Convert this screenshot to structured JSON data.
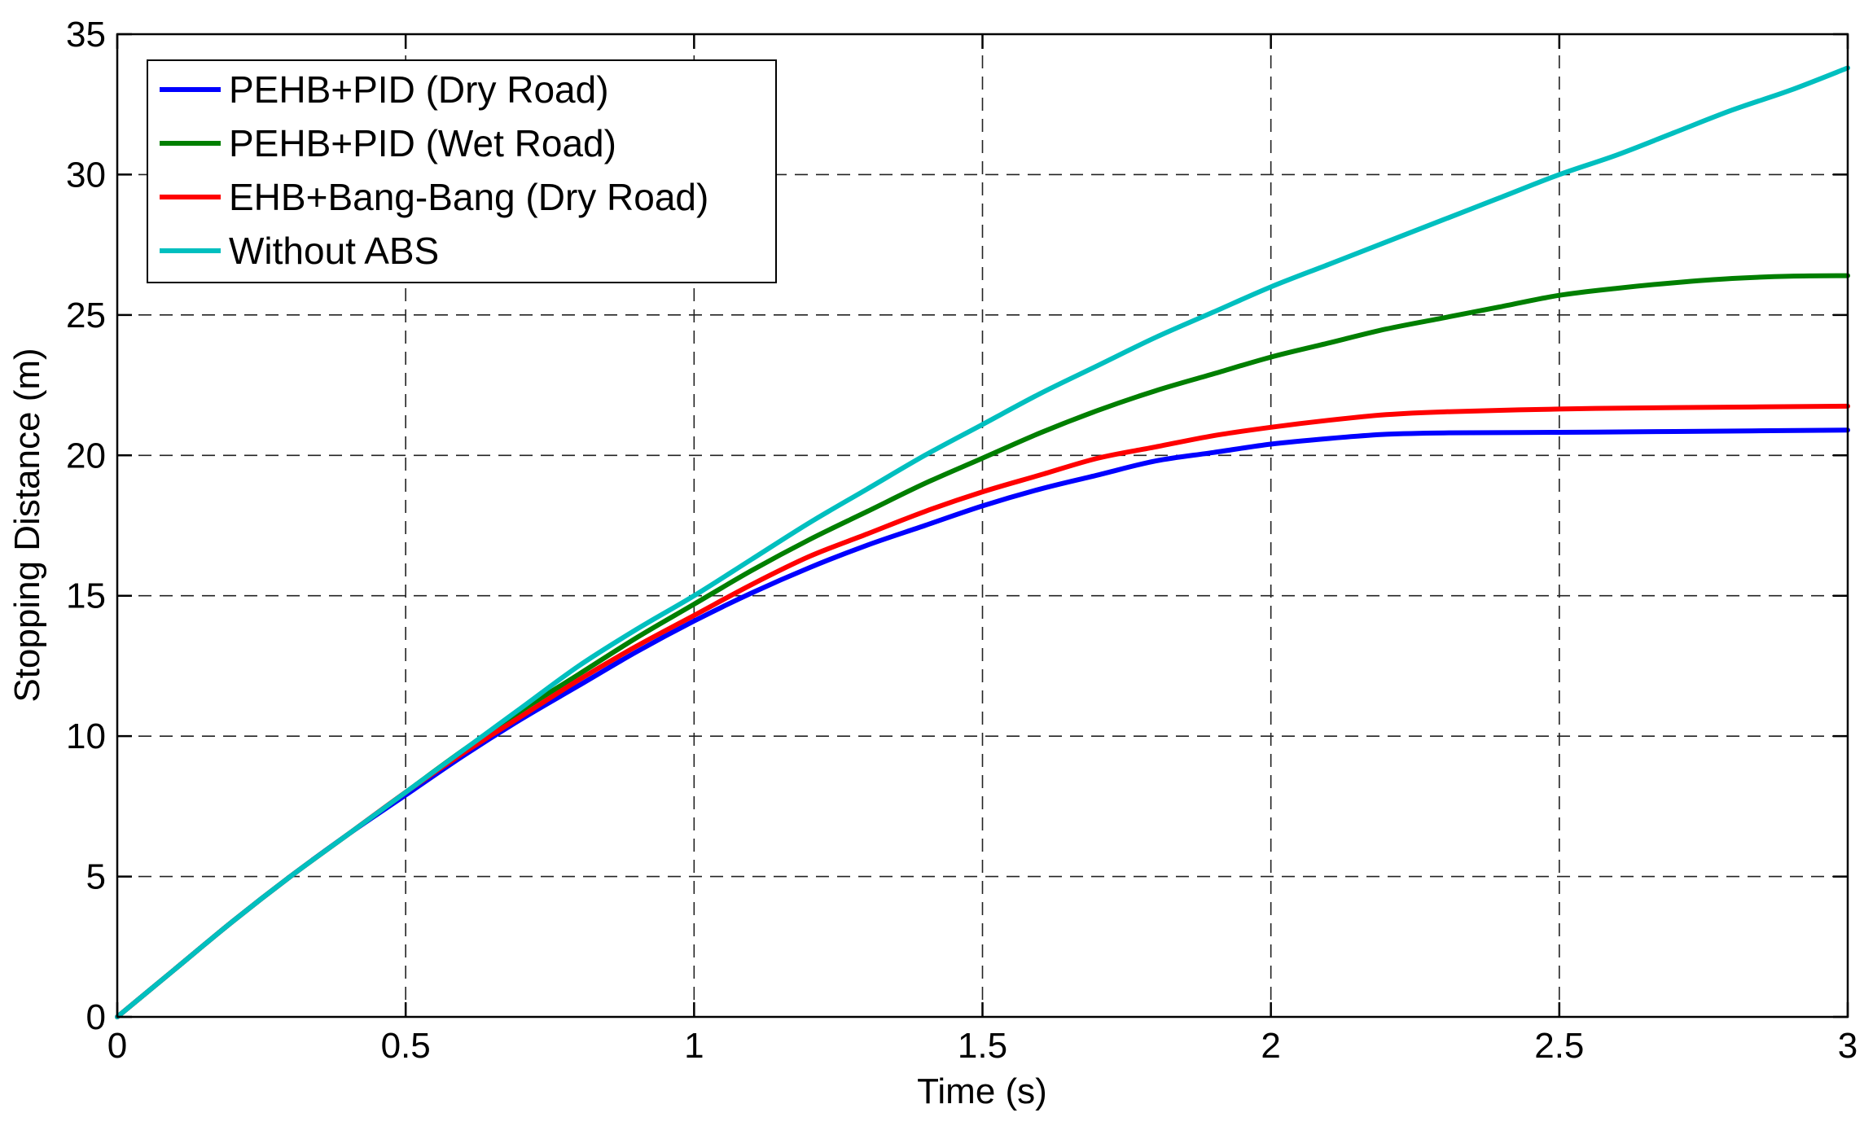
{
  "chart_data": {
    "type": "line",
    "title": "",
    "xlabel": "Time (s)",
    "ylabel": "Stopping Distance (m)",
    "xlim": [
      0,
      3
    ],
    "ylim": [
      0,
      35
    ],
    "xticks": [
      0,
      0.5,
      1,
      1.5,
      2,
      2.5,
      3
    ],
    "xtick_labels": [
      "0",
      "0.5",
      "1",
      "1.5",
      "2",
      "2.5",
      "3"
    ],
    "yticks": [
      0,
      5,
      10,
      15,
      20,
      25,
      30,
      35
    ],
    "ytick_labels": [
      "0",
      "5",
      "10",
      "15",
      "20",
      "25",
      "30",
      "35"
    ],
    "grid": true,
    "legend_position": "top-left",
    "series": [
      {
        "name": "PEHB+PID (Dry Road)",
        "color": "#0000ff",
        "x": [
          0,
          0.1,
          0.2,
          0.3,
          0.4,
          0.5,
          0.6,
          0.7,
          0.8,
          0.9,
          1.0,
          1.1,
          1.2,
          1.3,
          1.4,
          1.5,
          1.6,
          1.7,
          1.8,
          1.9,
          2.0,
          2.1,
          2.2,
          2.3,
          2.5,
          2.7,
          3.0
        ],
        "y": [
          0,
          1.7,
          3.4,
          5.0,
          6.5,
          7.9,
          9.3,
          10.6,
          11.8,
          13.0,
          14.1,
          15.1,
          16.0,
          16.8,
          17.5,
          18.2,
          18.8,
          19.3,
          19.8,
          20.1,
          20.4,
          20.6,
          20.75,
          20.8,
          20.82,
          20.85,
          20.9
        ]
      },
      {
        "name": "PEHB+PID (Wet Road)",
        "color": "#007f00",
        "x": [
          0,
          0.1,
          0.2,
          0.3,
          0.4,
          0.5,
          0.6,
          0.7,
          0.8,
          0.9,
          1.0,
          1.1,
          1.2,
          1.3,
          1.4,
          1.5,
          1.6,
          1.7,
          1.8,
          1.9,
          2.0,
          2.1,
          2.2,
          2.3,
          2.4,
          2.5,
          2.6,
          2.7,
          2.8,
          2.9,
          3.0
        ],
        "y": [
          0,
          1.7,
          3.4,
          5.0,
          6.5,
          8.0,
          9.5,
          10.9,
          12.2,
          13.5,
          14.7,
          15.9,
          17.0,
          18.0,
          19.0,
          19.9,
          20.8,
          21.6,
          22.3,
          22.9,
          23.5,
          24.0,
          24.5,
          24.9,
          25.3,
          25.7,
          25.95,
          26.15,
          26.3,
          26.38,
          26.4
        ]
      },
      {
        "name": "EHB+Bang-Bang (Dry Road)",
        "color": "#ff0000",
        "x": [
          0,
          0.1,
          0.2,
          0.3,
          0.4,
          0.5,
          0.6,
          0.7,
          0.8,
          0.9,
          1.0,
          1.1,
          1.2,
          1.3,
          1.4,
          1.5,
          1.6,
          1.7,
          1.8,
          1.9,
          2.0,
          2.1,
          2.2,
          2.3,
          2.5,
          2.7,
          3.0
        ],
        "y": [
          0,
          1.7,
          3.4,
          5.0,
          6.5,
          8.0,
          9.4,
          10.7,
          12.0,
          13.2,
          14.3,
          15.4,
          16.4,
          17.2,
          18.0,
          18.7,
          19.3,
          19.9,
          20.3,
          20.7,
          21.0,
          21.25,
          21.45,
          21.55,
          21.65,
          21.7,
          21.75
        ]
      },
      {
        "name": "Without ABS",
        "color": "#00bfbf",
        "x": [
          0,
          0.1,
          0.2,
          0.3,
          0.4,
          0.5,
          0.6,
          0.7,
          0.8,
          0.9,
          1.0,
          1.1,
          1.2,
          1.3,
          1.4,
          1.5,
          1.6,
          1.7,
          1.8,
          1.9,
          2.0,
          2.1,
          2.2,
          2.3,
          2.4,
          2.5,
          2.6,
          2.7,
          2.8,
          2.9,
          3.0
        ],
        "y": [
          0,
          1.7,
          3.4,
          5.0,
          6.5,
          8.0,
          9.5,
          11.0,
          12.5,
          13.8,
          15.0,
          16.3,
          17.6,
          18.8,
          20.0,
          21.1,
          22.2,
          23.2,
          24.2,
          25.1,
          26.0,
          26.8,
          27.6,
          28.4,
          29.2,
          30.0,
          30.7,
          31.5,
          32.3,
          33.0,
          33.8
        ]
      }
    ]
  }
}
